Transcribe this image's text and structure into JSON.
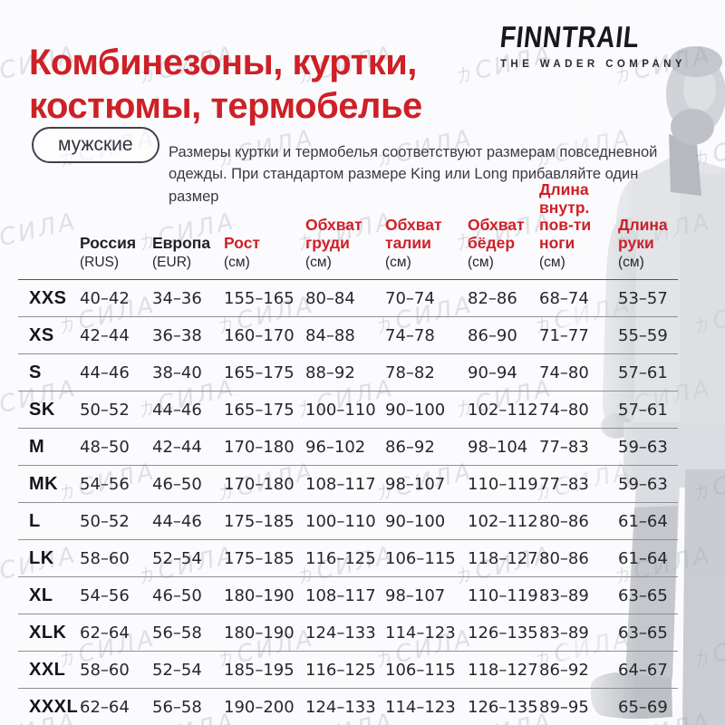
{
  "header": {
    "title_lines": [
      "Комбинезоны, куртки,",
      "костюмы, термобелье"
    ]
  },
  "logo": {
    "brand": "FINNTRAIL",
    "tagline": "THE WADER COMPANY"
  },
  "badge": {
    "label": "мужские"
  },
  "description": "Размеры куртки и термобелья соответствуют размерам повседневной одежды. При стандартом размере King или Long прибавляйте один размер",
  "watermark": {
    "text": "力СИЛА"
  },
  "colors": {
    "accent_red": "#ce2027",
    "text_dark": "#202226",
    "line_gray": "#8e8f94"
  },
  "table": {
    "size_column_header": "",
    "columns": [
      {
        "name": "Россия",
        "unit": "(RUS)",
        "red": false
      },
      {
        "name": "Европа",
        "unit": "(EUR)",
        "red": false
      },
      {
        "name": "Рост",
        "unit": "(см)",
        "red": true
      },
      {
        "name": "Обхват груди",
        "unit": "(см)",
        "red": true
      },
      {
        "name": "Обхват талии",
        "unit": "(см)",
        "red": true
      },
      {
        "name": "Обхват бёдер",
        "unit": "(см)",
        "red": true
      },
      {
        "name": "Длина внутр. пов-ти ноги",
        "unit": "(см)",
        "red": true
      },
      {
        "name": "Длина руки",
        "unit": "(см)",
        "red": true
      }
    ],
    "rows": [
      {
        "size": "XXS",
        "values": [
          "40–42",
          "34–36",
          "155–165",
          "80–84",
          "70–74",
          "82–86",
          "68–74",
          "53–57"
        ]
      },
      {
        "size": "XS",
        "values": [
          "42–44",
          "36–38",
          "160–170",
          "84–88",
          "74–78",
          "86–90",
          "71–77",
          "55–59"
        ]
      },
      {
        "size": "S",
        "values": [
          "44–46",
          "38–40",
          "165–175",
          "88–92",
          "78–82",
          "90–94",
          "74–80",
          "57–61"
        ]
      },
      {
        "size": "SK",
        "values": [
          "50–52",
          "44–46",
          "165–175",
          "100–110",
          "90–100",
          "102–112",
          "74–80",
          "57–61"
        ]
      },
      {
        "size": "M",
        "values": [
          "48–50",
          "42–44",
          "170–180",
          "96–102",
          "86–92",
          "98–104",
          "77–83",
          "59–63"
        ]
      },
      {
        "size": "MK",
        "values": [
          "54–56",
          "46–50",
          "170–180",
          "108–117",
          "98–107",
          "110–119",
          "77–83",
          "59–63"
        ]
      },
      {
        "size": "L",
        "values": [
          "50–52",
          "44–46",
          "175–185",
          "100–110",
          "90–100",
          "102–112",
          "80–86",
          "61–64"
        ]
      },
      {
        "size": "LK",
        "values": [
          "58–60",
          "52–54",
          "175–185",
          "116–125",
          "106–115",
          "118–127",
          "80–86",
          "61–64"
        ]
      },
      {
        "size": "XL",
        "values": [
          "54–56",
          "46–50",
          "180–190",
          "108–117",
          "98–107",
          "110–119",
          "83–89",
          "63–65"
        ]
      },
      {
        "size": "XLK",
        "values": [
          "62–64",
          "56–58",
          "180–190",
          "124–133",
          "114–123",
          "126–135",
          "83–89",
          "63–65"
        ]
      },
      {
        "size": "XXL",
        "values": [
          "58–60",
          "52–54",
          "185–195",
          "116–125",
          "106–115",
          "118–127",
          "86–92",
          "64–67"
        ]
      },
      {
        "size": "XXXL",
        "values": [
          "62–64",
          "56–58",
          "190–200",
          "124–133",
          "114–123",
          "126–135",
          "89–95",
          "65–69"
        ]
      }
    ]
  }
}
